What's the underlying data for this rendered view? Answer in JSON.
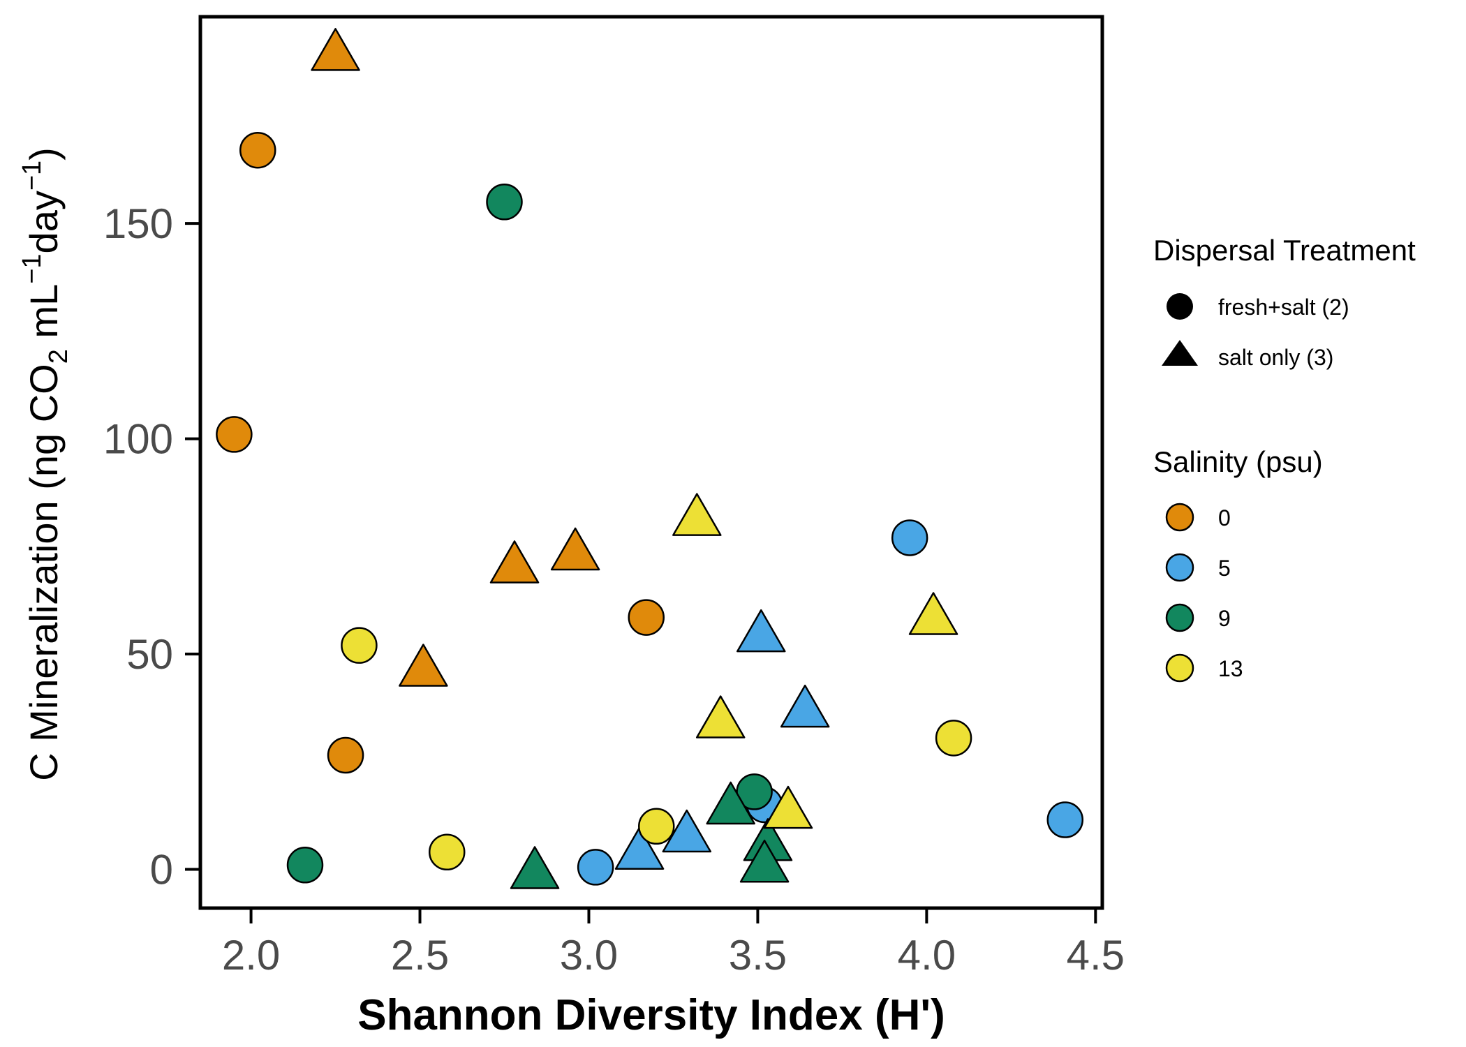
{
  "chart_data": {
    "type": "scatter",
    "title": "",
    "xlabel": "Shannon Diversity Index (H')",
    "ylabel": {
      "prefix": "C Mineralization (ng CO",
      "sub": "2",
      "mid1": " mL",
      "sup1": "−1",
      "mid2": "day",
      "sup2": "−1",
      "suffix": ")"
    },
    "xlim": [
      1.85,
      4.52
    ],
    "ylim": [
      -9,
      198
    ],
    "x_ticks": [
      "2.0",
      "2.5",
      "3.0",
      "3.5",
      "4.0",
      "4.5"
    ],
    "y_ticks": [
      "0",
      "50",
      "100",
      "150"
    ],
    "grid": false,
    "legend_position": "right",
    "legend": {
      "shape_title": "Dispersal Treatment",
      "shapes": [
        {
          "key": "circle",
          "label": "fresh+salt (2)"
        },
        {
          "key": "triangle",
          "label": "salt only (3)"
        }
      ],
      "color_title": "Salinity (psu)",
      "colors": [
        {
          "label": "0",
          "color": "#E08A0B"
        },
        {
          "label": "5",
          "color": "#49A6E5"
        },
        {
          "label": "9",
          "color": "#12875E"
        },
        {
          "label": "13",
          "color": "#EDE035"
        }
      ]
    },
    "series": [
      {
        "salinity": "0",
        "shape": "circle",
        "points": [
          [
            2.02,
            167
          ],
          [
            1.95,
            101
          ],
          [
            3.17,
            58.5
          ],
          [
            2.28,
            26.5
          ]
        ]
      },
      {
        "salinity": "0",
        "shape": "triangle",
        "points": [
          [
            2.25,
            190
          ],
          [
            2.78,
            71
          ],
          [
            2.96,
            74
          ],
          [
            2.51,
            47
          ]
        ]
      },
      {
        "salinity": "5",
        "shape": "circle",
        "points": [
          [
            3.95,
            77
          ],
          [
            3.52,
            15
          ],
          [
            3.02,
            0.5
          ],
          [
            4.41,
            11.5
          ]
        ]
      },
      {
        "salinity": "5",
        "shape": "triangle",
        "points": [
          [
            3.51,
            55
          ],
          [
            3.64,
            37.5
          ],
          [
            3.29,
            8.5
          ],
          [
            3.15,
            4.5
          ]
        ]
      },
      {
        "salinity": "9",
        "shape": "circle",
        "points": [
          [
            2.75,
            155
          ],
          [
            2.16,
            1
          ],
          [
            3.49,
            18
          ]
        ]
      },
      {
        "salinity": "9",
        "shape": "triangle",
        "points": [
          [
            2.84,
            0
          ],
          [
            3.42,
            15
          ],
          [
            3.53,
            6.5
          ],
          [
            3.52,
            1.5
          ]
        ]
      },
      {
        "salinity": "13",
        "shape": "circle",
        "points": [
          [
            2.32,
            52
          ],
          [
            2.58,
            4
          ],
          [
            3.2,
            10
          ],
          [
            4.08,
            30.5
          ]
        ]
      },
      {
        "salinity": "13",
        "shape": "triangle",
        "points": [
          [
            3.32,
            82
          ],
          [
            3.39,
            35
          ],
          [
            3.59,
            14
          ],
          [
            4.02,
            59
          ]
        ]
      }
    ]
  }
}
